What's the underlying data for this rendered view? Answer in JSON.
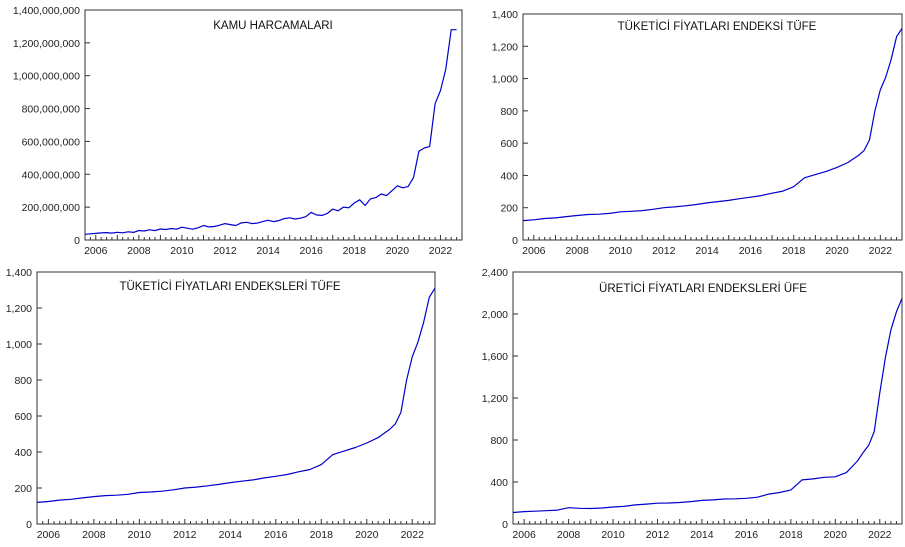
{
  "chart_data": [
    {
      "type": "line",
      "title": "KAMU HARCAMALARI",
      "xlabel": "",
      "ylabel": "",
      "xlim": [
        2005.5,
        2023.0
      ],
      "ylim": [
        0,
        1400000000
      ],
      "yticks": [
        0,
        200000000,
        400000000,
        600000000,
        800000000,
        1000000000,
        1200000000,
        1400000000
      ],
      "ytick_labels": [
        "0",
        "200,000,000",
        "400,000,000",
        "600,000,000",
        "800,000,000",
        "1,000,000,000",
        "1,200,000,000",
        "1,400,000,000"
      ],
      "xticks": [
        2006,
        2008,
        2010,
        2012,
        2014,
        2016,
        2018,
        2020,
        2022
      ],
      "xtick_labels": [
        "2006",
        "2008",
        "2010",
        "2012",
        "2014",
        "2016",
        "2018",
        "2020",
        "2022"
      ],
      "grid": false,
      "series": [
        {
          "color": "#0000cc",
          "x": [
            2005.5,
            2005.75,
            2006.0,
            2006.25,
            2006.5,
            2006.75,
            2007.0,
            2007.25,
            2007.5,
            2007.75,
            2008.0,
            2008.25,
            2008.5,
            2008.75,
            2009.0,
            2009.25,
            2009.5,
            2009.75,
            2010.0,
            2010.25,
            2010.5,
            2010.75,
            2011.0,
            2011.25,
            2011.5,
            2011.75,
            2012.0,
            2012.25,
            2012.5,
            2012.75,
            2013.0,
            2013.25,
            2013.5,
            2013.75,
            2014.0,
            2014.25,
            2014.5,
            2014.75,
            2015.0,
            2015.25,
            2015.5,
            2015.75,
            2016.0,
            2016.25,
            2016.5,
            2016.75,
            2017.0,
            2017.25,
            2017.5,
            2017.75,
            2018.0,
            2018.25,
            2018.5,
            2018.75,
            2019.0,
            2019.25,
            2019.5,
            2019.75,
            2020.0,
            2020.25,
            2020.5,
            2020.75,
            2021.0,
            2021.25,
            2021.5,
            2021.75,
            2022.0,
            2022.25,
            2022.5,
            2022.75
          ],
          "y": [
            35000000,
            38000000,
            40000000,
            43000000,
            45000000,
            42000000,
            47000000,
            44000000,
            50000000,
            46000000,
            58000000,
            55000000,
            62000000,
            57000000,
            67000000,
            64000000,
            70000000,
            66000000,
            78000000,
            72000000,
            66000000,
            74000000,
            88000000,
            80000000,
            82000000,
            90000000,
            100000000,
            94000000,
            88000000,
            104000000,
            108000000,
            100000000,
            103000000,
            112000000,
            120000000,
            112000000,
            118000000,
            130000000,
            135000000,
            128000000,
            133000000,
            142000000,
            168000000,
            152000000,
            150000000,
            162000000,
            188000000,
            178000000,
            200000000,
            196000000,
            225000000,
            245000000,
            210000000,
            250000000,
            258000000,
            280000000,
            270000000,
            300000000,
            330000000,
            318000000,
            325000000,
            380000000,
            540000000,
            560000000,
            570000000,
            830000000,
            910000000,
            1040000000,
            1280000000,
            1280000000
          ]
        }
      ]
    },
    {
      "type": "line",
      "title": "TÜKETİCİ FİYATLARI ENDEKSİ TÜFE",
      "xlabel": "",
      "ylabel": "",
      "xlim": [
        2005.5,
        2023.0
      ],
      "ylim": [
        0,
        1400
      ],
      "yticks": [
        0,
        200,
        400,
        600,
        800,
        1000,
        1200,
        1400
      ],
      "ytick_labels": [
        "0",
        "200",
        "400",
        "600",
        "800",
        "1,000",
        "1,200",
        "1,400"
      ],
      "xticks": [
        2006,
        2008,
        2010,
        2012,
        2014,
        2016,
        2018,
        2020,
        2022
      ],
      "xtick_labels": [
        "2006",
        "2008",
        "2010",
        "2012",
        "2014",
        "2016",
        "2018",
        "2020",
        "2022"
      ],
      "grid": false,
      "series": [
        {
          "color": "#0000cc",
          "x": [
            2005.5,
            2006.0,
            2006.5,
            2007.0,
            2007.5,
            2008.0,
            2008.5,
            2009.0,
            2009.5,
            2010.0,
            2010.5,
            2011.0,
            2011.5,
            2012.0,
            2012.5,
            2013.0,
            2013.5,
            2014.0,
            2014.5,
            2015.0,
            2015.5,
            2016.0,
            2016.5,
            2017.0,
            2017.5,
            2018.0,
            2018.5,
            2019.0,
            2019.5,
            2020.0,
            2020.5,
            2021.0,
            2021.25,
            2021.5,
            2021.75,
            2022.0,
            2022.25,
            2022.5,
            2022.75,
            2023.0
          ],
          "y": [
            120,
            125,
            133,
            137,
            145,
            152,
            158,
            160,
            165,
            175,
            178,
            182,
            190,
            200,
            205,
            212,
            220,
            230,
            238,
            245,
            256,
            265,
            275,
            290,
            303,
            330,
            385,
            405,
            425,
            450,
            480,
            525,
            555,
            620,
            800,
            930,
            1010,
            1120,
            1260,
            1310
          ]
        }
      ]
    },
    {
      "type": "line",
      "title": "TÜKETİCİ FİYATLARI ENDEKSLERİ  TÜFE",
      "xlabel": "",
      "ylabel": "",
      "xlim": [
        2005.5,
        2023.0
      ],
      "ylim": [
        0,
        1400
      ],
      "yticks": [
        0,
        200,
        400,
        600,
        800,
        1000,
        1200,
        1400
      ],
      "ytick_labels": [
        "0",
        "200",
        "400",
        "600",
        "800",
        "1,000",
        "1,200",
        "1,400"
      ],
      "xticks": [
        2006,
        2008,
        2010,
        2012,
        2014,
        2016,
        2018,
        2020,
        2022
      ],
      "xtick_labels": [
        "2006",
        "2008",
        "2010",
        "2012",
        "2014",
        "2016",
        "2018",
        "2020",
        "2022"
      ],
      "grid": false,
      "series": [
        {
          "color": "#0000cc",
          "x": [
            2005.5,
            2006.0,
            2006.5,
            2007.0,
            2007.5,
            2008.0,
            2008.5,
            2009.0,
            2009.5,
            2010.0,
            2010.5,
            2011.0,
            2011.5,
            2012.0,
            2012.5,
            2013.0,
            2013.5,
            2014.0,
            2014.5,
            2015.0,
            2015.5,
            2016.0,
            2016.5,
            2017.0,
            2017.5,
            2018.0,
            2018.5,
            2019.0,
            2019.5,
            2020.0,
            2020.5,
            2021.0,
            2021.25,
            2021.5,
            2021.75,
            2022.0,
            2022.25,
            2022.5,
            2022.75,
            2023.0
          ],
          "y": [
            120,
            125,
            133,
            137,
            145,
            152,
            158,
            160,
            165,
            175,
            178,
            182,
            190,
            200,
            205,
            212,
            220,
            230,
            238,
            245,
            256,
            265,
            275,
            290,
            303,
            330,
            385,
            405,
            425,
            450,
            480,
            525,
            555,
            620,
            800,
            930,
            1010,
            1120,
            1260,
            1310
          ]
        }
      ]
    },
    {
      "type": "line",
      "title": "ÜRETİCİ FİYATLARI ENDEKSLERİ  ÜFE",
      "xlabel": "",
      "ylabel": "",
      "xlim": [
        2005.5,
        2023.0
      ],
      "ylim": [
        0,
        2400
      ],
      "yticks": [
        0,
        400,
        800,
        1200,
        1600,
        2000,
        2400
      ],
      "ytick_labels": [
        "0",
        "400",
        "800",
        "1,200",
        "1,600",
        "2,000",
        "2,400"
      ],
      "xticks": [
        2006,
        2008,
        2010,
        2012,
        2014,
        2016,
        2018,
        2020,
        2022
      ],
      "xtick_labels": [
        "2006",
        "2008",
        "2010",
        "2012",
        "2014",
        "2016",
        "2018",
        "2020",
        "2022"
      ],
      "grid": false,
      "series": [
        {
          "color": "#0000cc",
          "x": [
            2005.5,
            2006.0,
            2006.5,
            2007.0,
            2007.5,
            2008.0,
            2008.5,
            2009.0,
            2009.5,
            2010.0,
            2010.5,
            2011.0,
            2011.5,
            2012.0,
            2012.5,
            2013.0,
            2013.5,
            2014.0,
            2014.5,
            2015.0,
            2015.5,
            2016.0,
            2016.5,
            2017.0,
            2017.5,
            2018.0,
            2018.5,
            2019.0,
            2019.5,
            2020.0,
            2020.5,
            2021.0,
            2021.25,
            2021.5,
            2021.75,
            2022.0,
            2022.25,
            2022.5,
            2022.75,
            2023.0
          ],
          "y": [
            110,
            118,
            122,
            127,
            132,
            155,
            150,
            148,
            152,
            162,
            168,
            182,
            190,
            198,
            200,
            205,
            213,
            225,
            230,
            238,
            240,
            245,
            255,
            285,
            300,
            325,
            420,
            430,
            445,
            450,
            490,
            600,
            680,
            750,
            880,
            1250,
            1580,
            1850,
            2020,
            2150
          ]
        }
      ]
    }
  ]
}
